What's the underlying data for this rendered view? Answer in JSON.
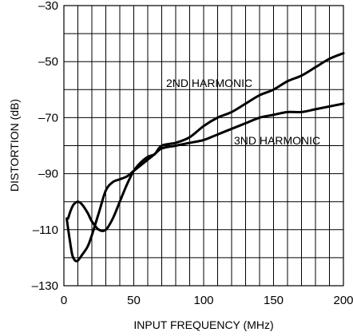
{
  "chart_data": {
    "type": "line",
    "xlabel": "INPUT FREQUENCY (MHz)",
    "ylabel": "DISTORTION (dB)",
    "xlim": [
      0,
      200
    ],
    "ylim": [
      -130,
      -30
    ],
    "xticks": [
      0,
      50,
      100,
      150,
      200
    ],
    "xtick_labels": [
      "0",
      "50",
      "100",
      "150",
      "200"
    ],
    "yticks": [
      -30,
      -50,
      -70,
      -90,
      -110,
      -130
    ],
    "ytick_labels": [
      "–30",
      "–50",
      "–70",
      "–90",
      "–110",
      "–130"
    ],
    "grid": true,
    "x_grid_step": 10,
    "y_grid_step": 10,
    "series": [
      {
        "name": "2ND HARMONIC",
        "x": [
          3,
          5,
          7,
          10,
          13,
          17,
          20,
          25,
          30,
          35,
          40,
          45,
          50,
          55,
          60,
          65,
          70,
          80,
          90,
          100,
          110,
          120,
          130,
          140,
          150,
          160,
          170,
          180,
          190,
          200
        ],
        "y": [
          -106,
          -103,
          -101,
          -100,
          -101,
          -104,
          -107,
          -110,
          -110,
          -106,
          -100,
          -94,
          -89,
          -86,
          -84,
          -83,
          -80,
          -79,
          -77,
          -73,
          -70,
          -68,
          -65,
          -62,
          -60,
          -57,
          -55,
          -52,
          -49,
          -47
        ]
      },
      {
        "name": "3ND HARMONIC",
        "x": [
          2,
          4,
          6,
          8,
          10,
          13,
          17,
          20,
          25,
          30,
          35,
          40,
          45,
          50,
          55,
          60,
          65,
          70,
          80,
          90,
          100,
          110,
          120,
          130,
          140,
          150,
          160,
          170,
          180,
          190,
          200
        ],
        "y": [
          -106,
          -113,
          -119,
          -121,
          -121,
          -119,
          -116,
          -112,
          -104,
          -96,
          -93,
          -92,
          -91,
          -89,
          -87,
          -85,
          -83,
          -81,
          -80,
          -79,
          -78,
          -76,
          -74,
          -72,
          -70,
          -69,
          -68,
          -68,
          -67,
          -66,
          -65
        ]
      }
    ]
  }
}
